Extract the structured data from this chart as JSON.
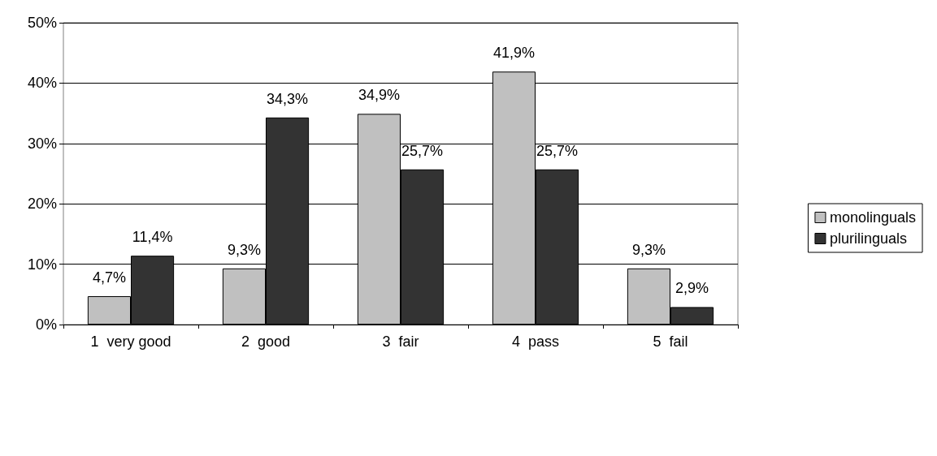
{
  "chart_data": {
    "type": "bar",
    "categories": [
      "1  very good",
      "2  good",
      "3  fair",
      "4  pass",
      "5  fail"
    ],
    "series": [
      {
        "name": "monolinguals",
        "color": "#c0c0c0",
        "values": [
          4.7,
          9.3,
          34.9,
          41.9,
          9.3
        ],
        "value_labels": [
          "4,7%",
          "9,3%",
          "34,9%",
          "41,9%",
          "9,3%"
        ]
      },
      {
        "name": "plurilinguals",
        "color": "#333333",
        "values": [
          11.4,
          34.3,
          25.7,
          25.7,
          2.9
        ],
        "value_labels": [
          "11,4%",
          "34,3%",
          "25,7%",
          "25,7%",
          "2,9%"
        ]
      }
    ],
    "ylim": [
      0,
      50
    ],
    "yticks": [
      {
        "value": 0,
        "label": "0%"
      },
      {
        "value": 10,
        "label": "10%"
      },
      {
        "value": 20,
        "label": "20%"
      },
      {
        "value": 30,
        "label": "30%"
      },
      {
        "value": 40,
        "label": "40%"
      },
      {
        "value": 50,
        "label": "50%"
      }
    ],
    "grid": "y",
    "legend": "right"
  }
}
